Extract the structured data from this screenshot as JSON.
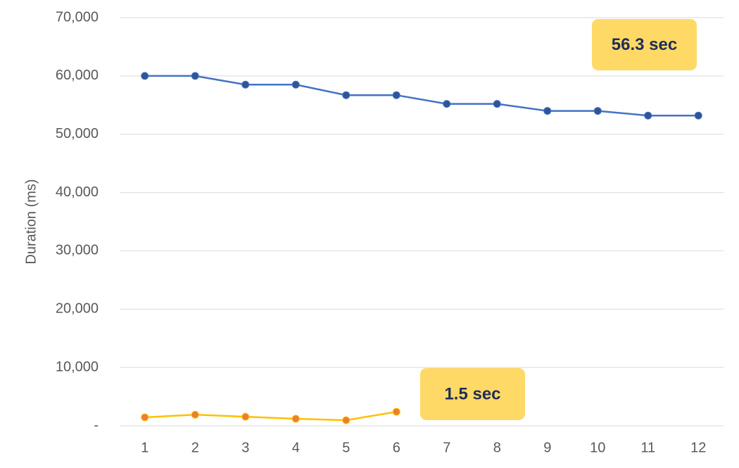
{
  "chart_data": {
    "type": "line",
    "y_label": "Duration (ms)",
    "categories": [
      "1",
      "2",
      "3",
      "4",
      "5",
      "6",
      "7",
      "8",
      "9",
      "10",
      "11",
      "12"
    ],
    "series": [
      {
        "color": "#4472c4",
        "marker_color": "#2f5597",
        "values": [
          60000,
          60000,
          58500,
          58500,
          56700,
          56700,
          55200,
          55200,
          54000,
          54000,
          53200,
          53200
        ]
      },
      {
        "color": "#ffc000",
        "marker_color": "#ed7d31",
        "values": [
          1450,
          1900,
          1550,
          1200,
          950,
          2400,
          null,
          null,
          null,
          null,
          null,
          null
        ]
      }
    ],
    "ylim": [
      0,
      70000
    ],
    "yticks": [
      {
        "value": 0,
        "label": "-"
      },
      {
        "value": 10000,
        "label": "10,000"
      },
      {
        "value": 20000,
        "label": "20,000"
      },
      {
        "value": 30000,
        "label": "30,000"
      },
      {
        "value": 40000,
        "label": "40,000"
      },
      {
        "value": 50000,
        "label": "50,000"
      },
      {
        "value": 60000,
        "label": "60,000"
      },
      {
        "value": 70000,
        "label": "70,000"
      }
    ],
    "grid": true,
    "annotations": [
      {
        "text": "56.3 sec",
        "color": "#ffd966"
      },
      {
        "text": "1.5 sec",
        "color": "#ffd966"
      }
    ]
  }
}
